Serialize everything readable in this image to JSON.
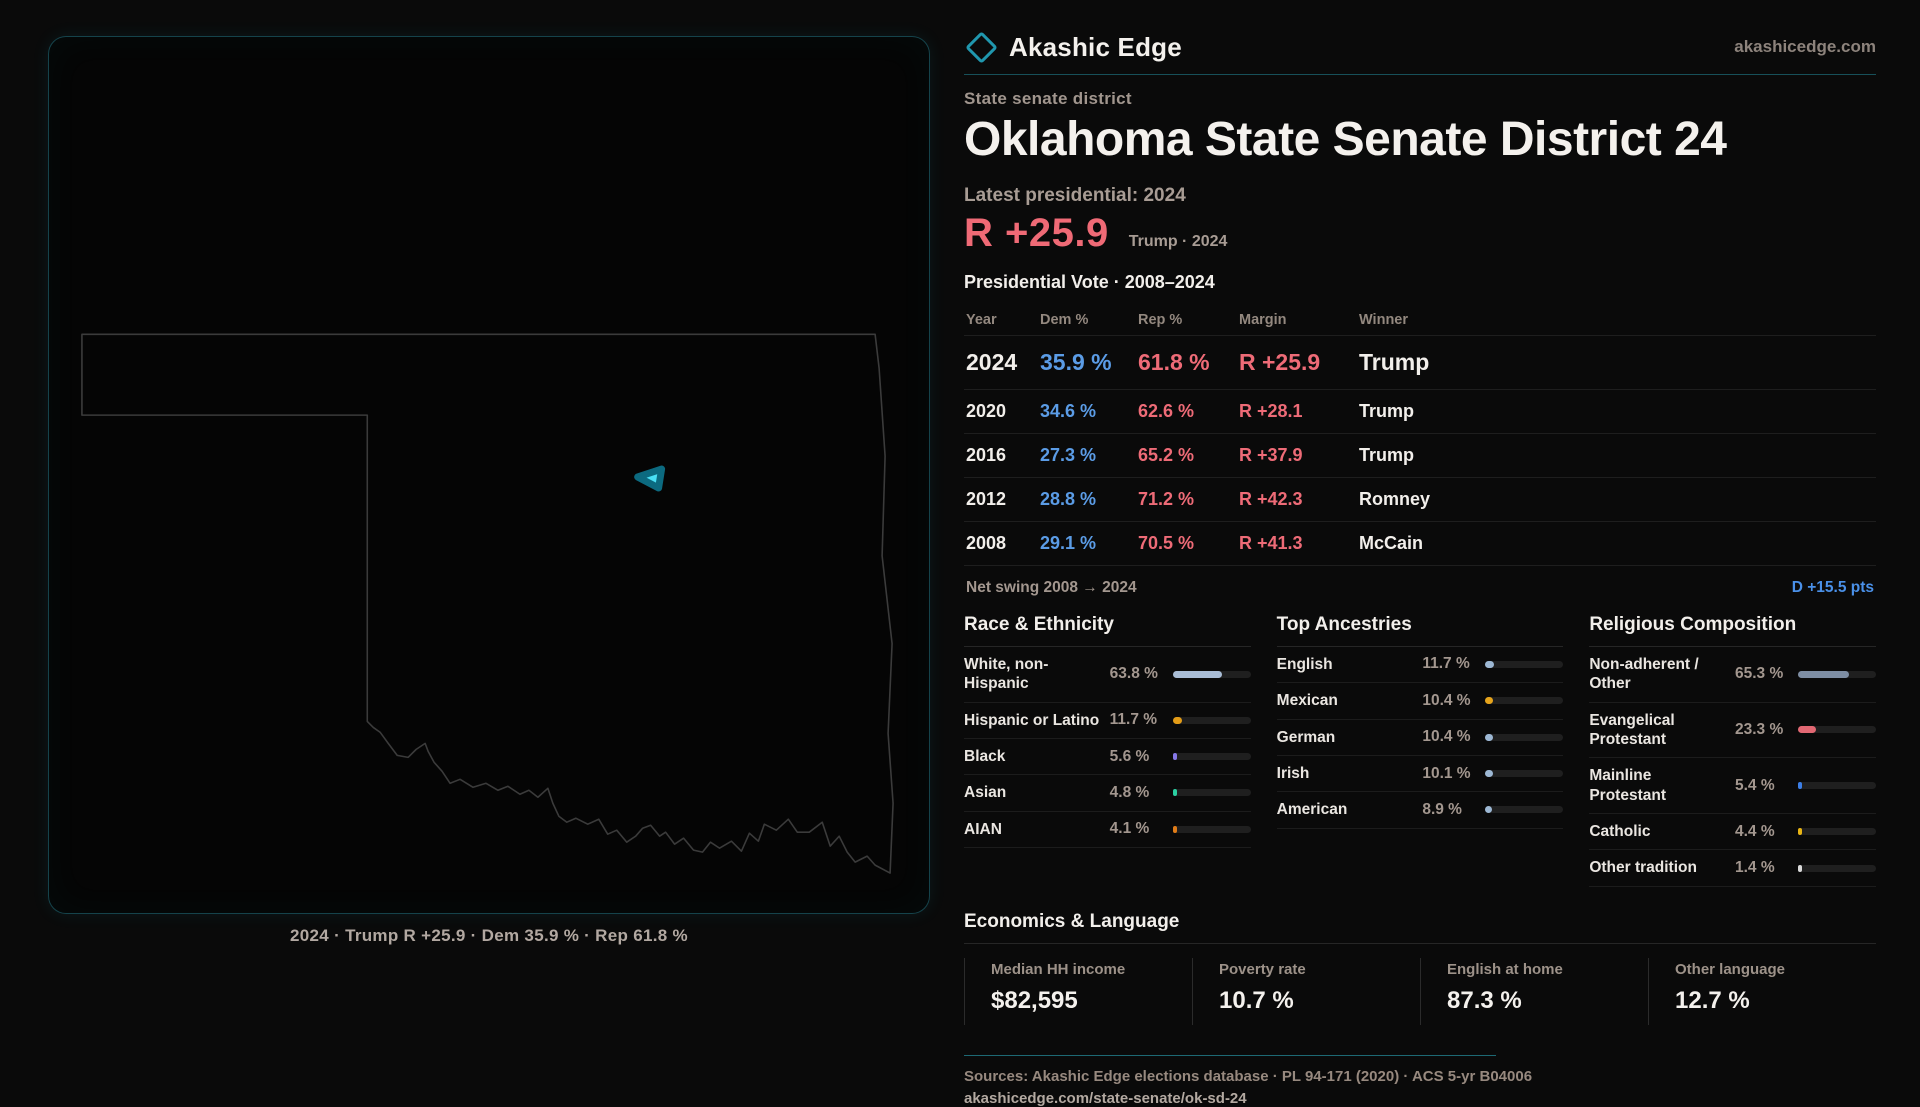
{
  "brand": {
    "name": "Akashic Edge",
    "site": "akashicedge.com",
    "logo": "diamond-icon"
  },
  "kicker": "State senate district",
  "title": "Oklahoma State Senate District 24",
  "headline": {
    "label": "Latest presidential: 2024",
    "margin": "R +25.9",
    "detail": "Trump · 2024"
  },
  "vote_table": {
    "title": "Presidential Vote · 2008–2024",
    "columns": [
      "Year",
      "Dem %",
      "Rep %",
      "Margin",
      "Winner"
    ],
    "rows": [
      {
        "year": "2024",
        "dem": "35.9 %",
        "rep": "61.8 %",
        "margin": "R +25.9",
        "winner": "Trump",
        "highlight": true
      },
      {
        "year": "2020",
        "dem": "34.6 %",
        "rep": "62.6 %",
        "margin": "R +28.1",
        "winner": "Trump",
        "highlight": false
      },
      {
        "year": "2016",
        "dem": "27.3 %",
        "rep": "65.2 %",
        "margin": "R +37.9",
        "winner": "Trump",
        "highlight": false
      },
      {
        "year": "2012",
        "dem": "28.8 %",
        "rep": "71.2 %",
        "margin": "R +42.3",
        "winner": "Romney",
        "highlight": false
      },
      {
        "year": "2008",
        "dem": "29.1 %",
        "rep": "70.5 %",
        "margin": "R +41.3",
        "winner": "McCain",
        "highlight": false
      }
    ]
  },
  "net_swing": {
    "label": "Net swing 2008 → 2024",
    "value": "D +15.5 pts"
  },
  "demographics": [
    {
      "title": "Race & Ethnicity",
      "rows": [
        {
          "label": "White, non-Hispanic",
          "value": "63.8 %",
          "pct": 63.8,
          "color": "#a9bdd6"
        },
        {
          "label": "Hispanic or Latino",
          "value": "11.7 %",
          "pct": 11.7,
          "color": "#e39c17"
        },
        {
          "label": "Black",
          "value": "5.6 %",
          "pct": 5.6,
          "color": "#8678e8"
        },
        {
          "label": "Asian",
          "value": "4.8 %",
          "pct": 4.8,
          "color": "#2bd0a2"
        },
        {
          "label": "AIAN",
          "value": "4.1 %",
          "pct": 4.1,
          "color": "#e07c18"
        }
      ]
    },
    {
      "title": "Top Ancestries",
      "rows": [
        {
          "label": "English",
          "value": "11.7 %",
          "pct": 11.7,
          "color": "#9db8d4"
        },
        {
          "label": "Mexican",
          "value": "10.4 %",
          "pct": 10.4,
          "color": "#e6a41c"
        },
        {
          "label": "German",
          "value": "10.4 %",
          "pct": 10.4,
          "color": "#9db8d4"
        },
        {
          "label": "Irish",
          "value": "10.1 %",
          "pct": 10.1,
          "color": "#9db8d4"
        },
        {
          "label": "American",
          "value": "8.9 %",
          "pct": 8.9,
          "color": "#9db8d4"
        }
      ]
    },
    {
      "title": "Religious Composition",
      "rows": [
        {
          "label": "Non-adherent / Other",
          "value": "65.3 %",
          "pct": 65.3,
          "color": "#7e8ea4"
        },
        {
          "label": "Evangelical Protestant",
          "value": "23.3 %",
          "pct": 23.3,
          "color": "#e26873"
        },
        {
          "label": "Mainline Protestant",
          "value": "5.4 %",
          "pct": 5.4,
          "color": "#3c7ee6"
        },
        {
          "label": "Catholic",
          "value": "4.4 %",
          "pct": 4.4,
          "color": "#e8b414"
        },
        {
          "label": "Other tradition",
          "value": "1.4 %",
          "pct": 1.4,
          "color": "#d9d9d9"
        }
      ]
    }
  ],
  "economics": {
    "title": "Economics & Language",
    "stats": [
      {
        "label": "Median HH income",
        "value": "$82,595"
      },
      {
        "label": "Poverty rate",
        "value": "10.7 %"
      },
      {
        "label": "English at home",
        "value": "87.3 %"
      },
      {
        "label": "Other language",
        "value": "12.7 %"
      }
    ]
  },
  "map": {
    "caption": "2024 · Trump R +25.9 · Dem 35.9 % · Rep 61.8 %",
    "marker": "district-24"
  },
  "footer": {
    "sources": "Sources: Akashic Edge elections database · PL 94-171 (2020) · ACS 5-yr B04006",
    "url": "akashicedge.com/state-senate/ok-sd-24"
  },
  "colors": {
    "accent_teal": "#2097ae",
    "dem_blue": "#5b9ce6",
    "rep_red": "#ee6b77",
    "swing_blue": "#4a90e8",
    "marker_cyan": "#49e0f6",
    "background": "#0a0a0a"
  }
}
